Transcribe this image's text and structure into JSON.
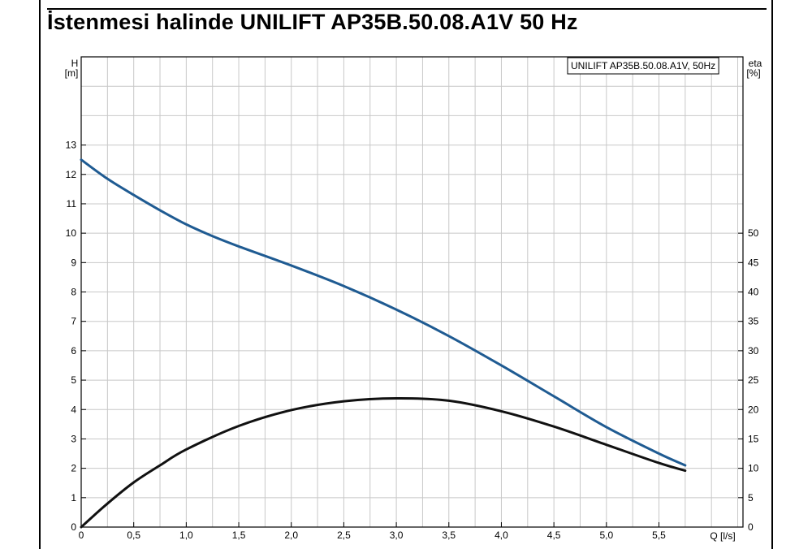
{
  "title": "İstenmesi halinde UNILIFT AP35B.50.08.A1V 50 Hz",
  "chart_data": {
    "type": "line",
    "legend": "UNILIFT AP35B.50.08.A1V, 50Hz",
    "legend_position": "top-right",
    "grid": true,
    "x_axis": {
      "label": "Q [l/s]",
      "range": [
        0,
        6.3
      ],
      "ticks": [
        0,
        0.5,
        1.0,
        1.5,
        2.0,
        2.5,
        3.0,
        3.5,
        4.0,
        4.5,
        5.0,
        5.5
      ],
      "tick_labels": [
        "0",
        "0,5",
        "1,0",
        "1,5",
        "2,0",
        "2,5",
        "3,0",
        "3,5",
        "4,0",
        "4,5",
        "5,0",
        "5,5"
      ]
    },
    "y_axis_left": {
      "label_line1": "H",
      "label_line2": "[m]",
      "range": [
        0,
        16
      ],
      "ticks": [
        0,
        1,
        2,
        3,
        4,
        5,
        6,
        7,
        8,
        9,
        10,
        11,
        12,
        13
      ],
      "tick_labels": [
        "0",
        "1",
        "2",
        "3",
        "4",
        "5",
        "6",
        "7",
        "8",
        "9",
        "10",
        "11",
        "12",
        "13"
      ]
    },
    "y_axis_right": {
      "label_line1": "eta",
      "label_line2": "[%]",
      "range": [
        0,
        80
      ],
      "ticks": [
        0,
        5,
        10,
        15,
        20,
        25,
        30,
        35,
        40,
        45,
        50
      ],
      "tick_labels": [
        "0",
        "5",
        "10",
        "15",
        "20",
        "25",
        "30",
        "35",
        "40",
        "45",
        "50"
      ]
    },
    "series": [
      {
        "id": "head",
        "axis": "left",
        "color": "#1f5b92",
        "x": [
          0,
          0.25,
          0.5,
          0.75,
          1.0,
          1.25,
          1.5,
          2.0,
          2.5,
          3.0,
          3.5,
          4.0,
          4.5,
          5.0,
          5.5,
          5.75
        ],
        "y": [
          12.5,
          11.85,
          11.3,
          10.78,
          10.3,
          9.9,
          9.55,
          8.9,
          8.2,
          7.4,
          6.5,
          5.5,
          4.45,
          3.4,
          2.5,
          2.1
        ]
      },
      {
        "id": "efficiency",
        "axis": "right",
        "color": "#111111",
        "x": [
          0,
          0.25,
          0.5,
          0.75,
          1.0,
          1.5,
          2.0,
          2.5,
          3.0,
          3.5,
          4.0,
          4.5,
          5.0,
          5.5,
          5.75
        ],
        "y": [
          0,
          4.0,
          7.6,
          10.5,
          13.2,
          17.2,
          19.9,
          21.4,
          21.9,
          21.5,
          19.7,
          17.1,
          14.0,
          10.9,
          9.6
        ]
      }
    ]
  }
}
